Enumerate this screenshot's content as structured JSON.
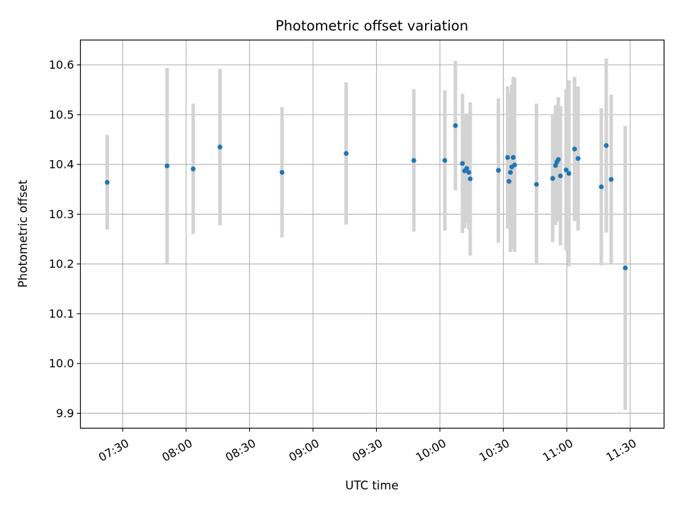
{
  "chart_data": {
    "type": "scatter",
    "title": "Photometric offset variation",
    "xlabel": "UTC time",
    "ylabel": "Photometric offset",
    "grid": true,
    "xlim": [
      "07:10",
      "11:46"
    ],
    "ylim": [
      9.87,
      10.65
    ],
    "x_ticks": [
      "07:30",
      "08:00",
      "08:30",
      "09:00",
      "09:30",
      "10:00",
      "10:30",
      "11:00",
      "11:30"
    ],
    "y_ticks": [
      9.9,
      10.0,
      10.1,
      10.2,
      10.3,
      10.4,
      10.5,
      10.6
    ],
    "y_tick_labels": [
      "9.9",
      "10.0",
      "10.1",
      "10.2",
      "10.3",
      "10.4",
      "10.5",
      "10.6"
    ],
    "point_color": "#1f77b4",
    "errorbar_color": "#d3d3d3",
    "points": [
      {
        "t": "07:22:40",
        "y": 10.364,
        "err": 0.095
      },
      {
        "t": "07:51:00",
        "y": 10.397,
        "err": 0.197
      },
      {
        "t": "08:03:20",
        "y": 10.391,
        "err": 0.131
      },
      {
        "t": "08:16:00",
        "y": 10.435,
        "err": 0.157
      },
      {
        "t": "08:45:20",
        "y": 10.384,
        "err": 0.131
      },
      {
        "t": "09:15:40",
        "y": 10.422,
        "err": 0.143
      },
      {
        "t": "09:47:40",
        "y": 10.408,
        "err": 0.143
      },
      {
        "t": "10:02:20",
        "y": 10.408,
        "err": 0.141
      },
      {
        "t": "10:07:20",
        "y": 10.478,
        "err": 0.13
      },
      {
        "t": "10:10:40",
        "y": 10.402,
        "err": 0.14
      },
      {
        "t": "10:11:40",
        "y": 10.387,
        "err": 0.115
      },
      {
        "t": "10:12:40",
        "y": 10.392,
        "err": 0.11
      },
      {
        "t": "10:13:40",
        "y": 10.384,
        "err": 0.115
      },
      {
        "t": "10:14:20",
        "y": 10.371,
        "err": 0.154
      },
      {
        "t": "10:27:40",
        "y": 10.388,
        "err": 0.145
      },
      {
        "t": "10:32:00",
        "y": 10.414,
        "err": 0.143
      },
      {
        "t": "10:32:40",
        "y": 10.366,
        "err": 0.095
      },
      {
        "t": "10:33:20",
        "y": 10.384,
        "err": 0.16
      },
      {
        "t": "10:34:00",
        "y": 10.395,
        "err": 0.165
      },
      {
        "t": "10:34:40",
        "y": 10.414,
        "err": 0.162
      },
      {
        "t": "10:35:20",
        "y": 10.399,
        "err": 0.175
      },
      {
        "t": "10:45:40",
        "y": 10.36,
        "err": 0.162
      },
      {
        "t": "10:53:20",
        "y": 10.372,
        "err": 0.128
      },
      {
        "t": "10:54:40",
        "y": 10.398,
        "err": 0.12
      },
      {
        "t": "10:55:20",
        "y": 10.405,
        "err": 0.115
      },
      {
        "t": "10:56:00",
        "y": 10.41,
        "err": 0.125
      },
      {
        "t": "10:57:00",
        "y": 10.377,
        "err": 0.14
      },
      {
        "t": "10:59:40",
        "y": 10.389,
        "err": 0.162
      },
      {
        "t": "11:01:00",
        "y": 10.382,
        "err": 0.187
      },
      {
        "t": "11:03:40",
        "y": 10.431,
        "err": 0.145
      },
      {
        "t": "11:05:20",
        "y": 10.412,
        "err": 0.145
      },
      {
        "t": "11:16:20",
        "y": 10.355,
        "err": 0.158
      },
      {
        "t": "11:18:40",
        "y": 10.438,
        "err": 0.175
      },
      {
        "t": "11:21:00",
        "y": 10.37,
        "err": 0.17
      },
      {
        "t": "11:27:40",
        "y": 10.192,
        "err": 0.285
      }
    ]
  }
}
